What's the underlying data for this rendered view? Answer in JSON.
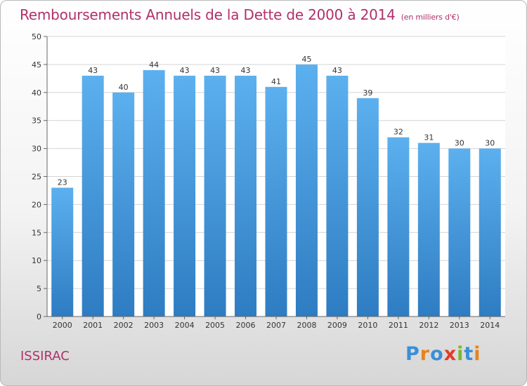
{
  "title": "Remboursements Annuels de la Dette de 2000 à 2014",
  "unit": "(en milliers d'€)",
  "commune": "ISSIRAC",
  "logo": {
    "text": "Proxiti",
    "letters": [
      {
        "ch": "P",
        "color": "#3a8fd8"
      },
      {
        "ch": "r",
        "color": "#e8831e"
      },
      {
        "ch": "o",
        "color": "#3a8fd8"
      },
      {
        "ch": "x",
        "color": "#e23b2a"
      },
      {
        "ch": "i",
        "color": "#7ab72e"
      },
      {
        "ch": "t",
        "color": "#3a8fd8"
      },
      {
        "ch": "i",
        "color": "#e8831e"
      }
    ]
  },
  "colors": {
    "title": "#b0306a",
    "bar_top": "#5cb0ee",
    "bar_bottom": "#2e7cc2",
    "grid": "#d4d4d4",
    "axis": "#666666",
    "text": "#333333"
  },
  "chart_data": {
    "type": "bar",
    "title": "Remboursements Annuels de la Dette de 2000 à 2014",
    "unit": "(en milliers d'€)",
    "categories": [
      "2000",
      "2001",
      "2002",
      "2003",
      "2004",
      "2005",
      "2006",
      "2007",
      "2008",
      "2009",
      "2010",
      "2011",
      "2012",
      "2013",
      "2014"
    ],
    "values": [
      23,
      43,
      40,
      44,
      43,
      43,
      43,
      41,
      45,
      43,
      39,
      32,
      31,
      30,
      30
    ],
    "ylim": [
      0,
      50
    ],
    "yticks": [
      0,
      5,
      10,
      15,
      20,
      25,
      30,
      35,
      40,
      45,
      50
    ],
    "grid": true,
    "data_labels": true,
    "xlabel": "",
    "ylabel": ""
  }
}
